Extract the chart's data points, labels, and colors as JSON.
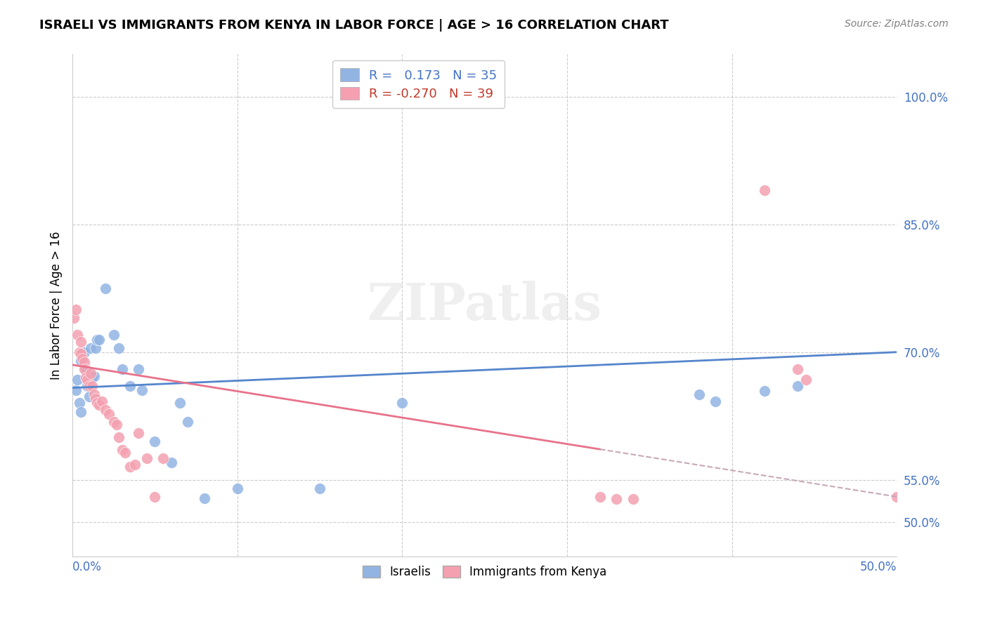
{
  "title": "ISRAELI VS IMMIGRANTS FROM KENYA IN LABOR FORCE | AGE > 16 CORRELATION CHART",
  "source": "Source: ZipAtlas.com",
  "ylabel": "In Labor Force | Age > 16",
  "ylabel_ticks": [
    "100.0%",
    "85.0%",
    "70.0%",
    "55.0%",
    "50.0%"
  ],
  "ytick_vals": [
    1.0,
    0.85,
    0.7,
    0.55,
    0.5
  ],
  "xlim": [
    0.0,
    0.5
  ],
  "ylim": [
    0.46,
    1.05
  ],
  "R_israelis": 0.173,
  "N_israelis": 35,
  "R_kenya": -0.27,
  "N_kenya": 39,
  "color_israelis": "#92b4e3",
  "color_kenya": "#f4a0b0",
  "color_israelis_line": "#5585cc",
  "color_kenya_line": "#e8728a",
  "color_kenya_dashed": "#c8a8b8",
  "watermark": "ZIPatlas",
  "israelis_x": [
    0.002,
    0.003,
    0.004,
    0.005,
    0.005,
    0.006,
    0.007,
    0.008,
    0.009,
    0.01,
    0.011,
    0.012,
    0.013,
    0.014,
    0.015,
    0.016,
    0.02,
    0.025,
    0.028,
    0.03,
    0.035,
    0.04,
    0.042,
    0.05,
    0.06,
    0.065,
    0.07,
    0.08,
    0.1,
    0.15,
    0.2,
    0.38,
    0.39,
    0.42,
    0.44
  ],
  "israelis_y": [
    0.655,
    0.668,
    0.64,
    0.63,
    0.69,
    0.7,
    0.7,
    0.68,
    0.66,
    0.648,
    0.705,
    0.67,
    0.672,
    0.705,
    0.715,
    0.715,
    0.775,
    0.72,
    0.705,
    0.68,
    0.66,
    0.68,
    0.655,
    0.595,
    0.57,
    0.64,
    0.618,
    0.528,
    0.54,
    0.54,
    0.64,
    0.65,
    0.642,
    0.654,
    0.66
  ],
  "kenya_x": [
    0.001,
    0.002,
    0.003,
    0.004,
    0.005,
    0.005,
    0.006,
    0.007,
    0.007,
    0.008,
    0.009,
    0.01,
    0.011,
    0.012,
    0.013,
    0.014,
    0.015,
    0.016,
    0.018,
    0.02,
    0.022,
    0.025,
    0.027,
    0.028,
    0.03,
    0.032,
    0.035,
    0.038,
    0.04,
    0.045,
    0.05,
    0.055,
    0.32,
    0.33,
    0.42,
    0.44,
    0.445,
    0.5,
    0.34
  ],
  "kenya_y": [
    0.74,
    0.75,
    0.72,
    0.7,
    0.698,
    0.712,
    0.692,
    0.688,
    0.68,
    0.67,
    0.668,
    0.66,
    0.675,
    0.66,
    0.65,
    0.645,
    0.64,
    0.638,
    0.642,
    0.632,
    0.627,
    0.618,
    0.615,
    0.6,
    0.585,
    0.582,
    0.565,
    0.568,
    0.605,
    0.575,
    0.53,
    0.575,
    0.53,
    0.527,
    0.89,
    0.68,
    0.668,
    0.53,
    0.527
  ]
}
